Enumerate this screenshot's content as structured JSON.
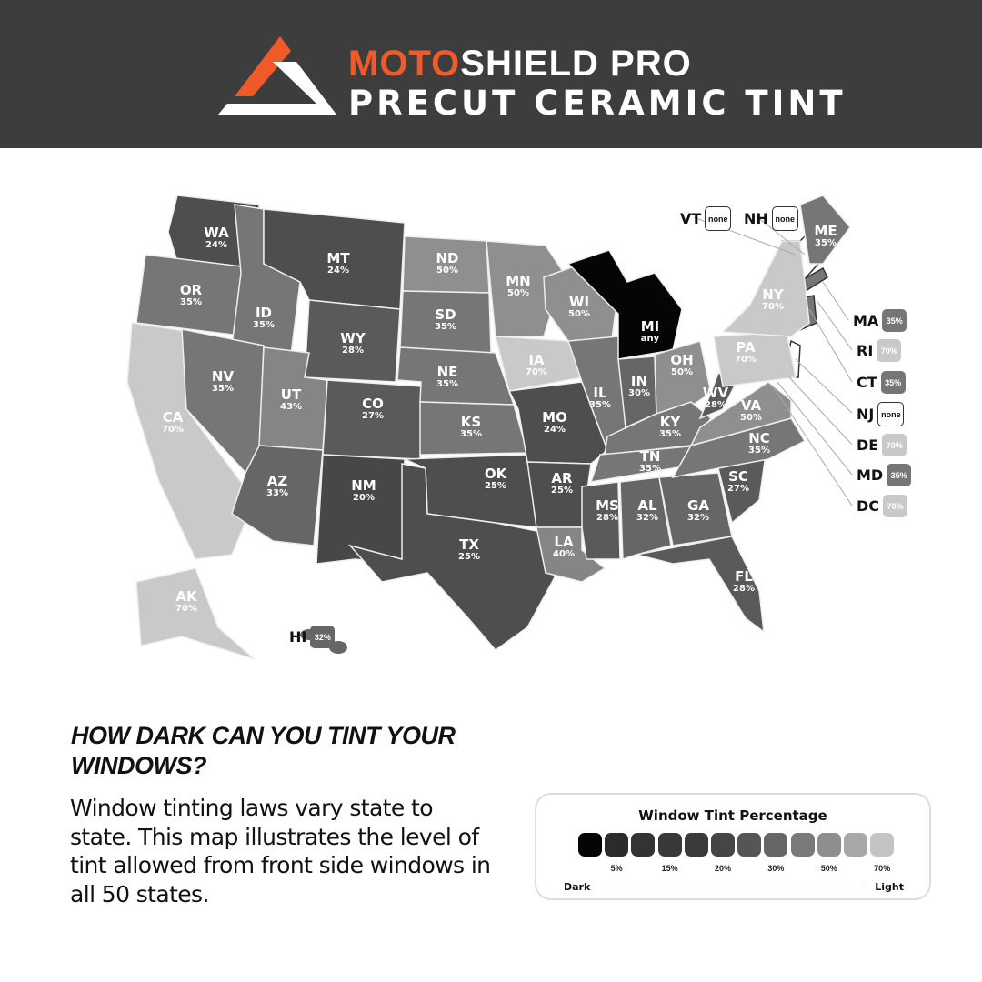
{
  "header": {
    "brand_part1": "MOTO",
    "brand_part2": "SHIELD PRO",
    "tagline": "PRECUT CERAMIC TINT",
    "brand_color": "#ef5a28",
    "logo": "triangle-logo"
  },
  "map": {
    "states": [
      {
        "abbr": "WA",
        "value": "24%"
      },
      {
        "abbr": "OR",
        "value": "35%"
      },
      {
        "abbr": "CA",
        "value": "70%"
      },
      {
        "abbr": "ID",
        "value": "35%"
      },
      {
        "abbr": "NV",
        "value": "35%"
      },
      {
        "abbr": "MT",
        "value": "24%"
      },
      {
        "abbr": "WY",
        "value": "28%"
      },
      {
        "abbr": "UT",
        "value": "43%"
      },
      {
        "abbr": "AZ",
        "value": "33%"
      },
      {
        "abbr": "CO",
        "value": "27%"
      },
      {
        "abbr": "NM",
        "value": "20%"
      },
      {
        "abbr": "ND",
        "value": "50%"
      },
      {
        "abbr": "SD",
        "value": "35%"
      },
      {
        "abbr": "NE",
        "value": "35%"
      },
      {
        "abbr": "KS",
        "value": "35%"
      },
      {
        "abbr": "OK",
        "value": "25%"
      },
      {
        "abbr": "TX",
        "value": "25%"
      },
      {
        "abbr": "MN",
        "value": "50%"
      },
      {
        "abbr": "IA",
        "value": "70%"
      },
      {
        "abbr": "MO",
        "value": "24%"
      },
      {
        "abbr": "AR",
        "value": "25%"
      },
      {
        "abbr": "LA",
        "value": "40%"
      },
      {
        "abbr": "WI",
        "value": "50%"
      },
      {
        "abbr": "IL",
        "value": "35%"
      },
      {
        "abbr": "MI",
        "value": "any"
      },
      {
        "abbr": "IN",
        "value": "30%"
      },
      {
        "abbr": "OH",
        "value": "50%"
      },
      {
        "abbr": "KY",
        "value": "35%"
      },
      {
        "abbr": "TN",
        "value": "35%"
      },
      {
        "abbr": "MS",
        "value": "28%"
      },
      {
        "abbr": "AL",
        "value": "32%"
      },
      {
        "abbr": "GA",
        "value": "32%"
      },
      {
        "abbr": "FL",
        "value": "28%"
      },
      {
        "abbr": "SC",
        "value": "27%"
      },
      {
        "abbr": "NC",
        "value": "35%"
      },
      {
        "abbr": "VA",
        "value": "50%"
      },
      {
        "abbr": "WV",
        "value": "28%"
      },
      {
        "abbr": "PA",
        "value": "70%"
      },
      {
        "abbr": "NY",
        "value": "70%"
      },
      {
        "abbr": "ME",
        "value": "35%"
      },
      {
        "abbr": "AK",
        "value": "70%"
      }
    ],
    "callouts": [
      {
        "abbr": "VT",
        "value": "none"
      },
      {
        "abbr": "NH",
        "value": "none"
      },
      {
        "abbr": "MA",
        "value": "35%"
      },
      {
        "abbr": "RI",
        "value": "70%"
      },
      {
        "abbr": "CT",
        "value": "35%"
      },
      {
        "abbr": "NJ",
        "value": "none"
      },
      {
        "abbr": "DE",
        "value": "70%"
      },
      {
        "abbr": "MD",
        "value": "35%"
      },
      {
        "abbr": "DC",
        "value": "70%"
      },
      {
        "abbr": "HI",
        "value": "32%"
      }
    ]
  },
  "info": {
    "heading": "HOW DARK CAN YOU TINT YOUR WINDOWS?",
    "body": "Window tinting laws vary state to state. This map illustrates the level of tint allowed from front side windows in all 50 states."
  },
  "legend": {
    "title": "Window Tint Percentage",
    "swatches": [
      "#050505",
      "#2b2b2b",
      "#333333",
      "#383838",
      "#3a3a3a",
      "#454545",
      "#555555",
      "#666666",
      "#7a7a7a",
      "#8e8e8e",
      "#a8a8a8",
      "#c4c4c4"
    ],
    "labels": [
      "5%",
      "15%",
      "20%",
      "30%",
      "50%",
      "70%"
    ],
    "dark_label": "Dark",
    "light_label": "Light"
  }
}
